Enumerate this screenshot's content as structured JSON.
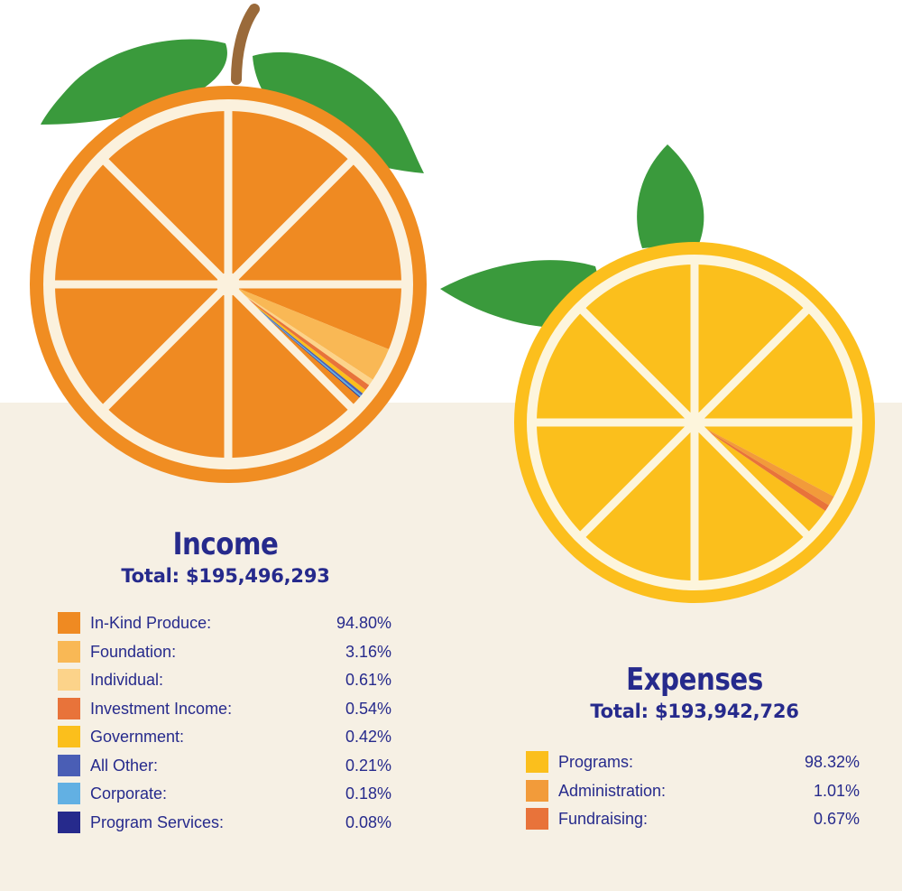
{
  "chart_data": [
    {
      "type": "pie",
      "title": "Income",
      "subtitle": "Total: $195,496,293",
      "slices": [
        {
          "label": "In-Kind Produce:",
          "value": 94.8,
          "display": "94.80%",
          "color": "#ef8a22"
        },
        {
          "label": "Foundation:",
          "value": 3.16,
          "display": "3.16%",
          "color": "#f9b855"
        },
        {
          "label": "Individual:",
          "value": 0.61,
          "display": "0.61%",
          "color": "#fcd38a"
        },
        {
          "label": "Investment Income:",
          "value": 0.54,
          "display": "0.54%",
          "color": "#e8733a"
        },
        {
          "label": "Government:",
          "value": 0.42,
          "display": "0.42%",
          "color": "#fbbf1c"
        },
        {
          "label": "All Other:",
          "value": 0.21,
          "display": "0.21%",
          "color": "#4a5eb5"
        },
        {
          "label": "Corporate:",
          "value": 0.18,
          "display": "0.18%",
          "color": "#62b0e3"
        },
        {
          "label": "Program Services:",
          "value": 0.08,
          "display": "0.08%",
          "color": "#262a8c"
        }
      ]
    },
    {
      "type": "pie",
      "title": "Expenses",
      "subtitle": "Total: $193,942,726",
      "slices": [
        {
          "label": "Programs:",
          "value": 98.32,
          "display": "98.32%",
          "color": "#fbbf1c"
        },
        {
          "label": "Administration:",
          "value": 1.01,
          "display": "1.01%",
          "color": "#f29b3a"
        },
        {
          "label": "Fundraising:",
          "value": 0.67,
          "display": "0.67%",
          "color": "#e8733a"
        }
      ]
    }
  ],
  "colors": {
    "title": "#262a8c",
    "paper": "#f6f0e4",
    "leaf": "#3a9a3c",
    "stem": "#9a6a3a",
    "orange_peel": "#f08d22",
    "orange_pith": "#fbf1dd",
    "lemon_peel": "#fcbf1d",
    "lemon_pith": "#fdf5dc"
  }
}
